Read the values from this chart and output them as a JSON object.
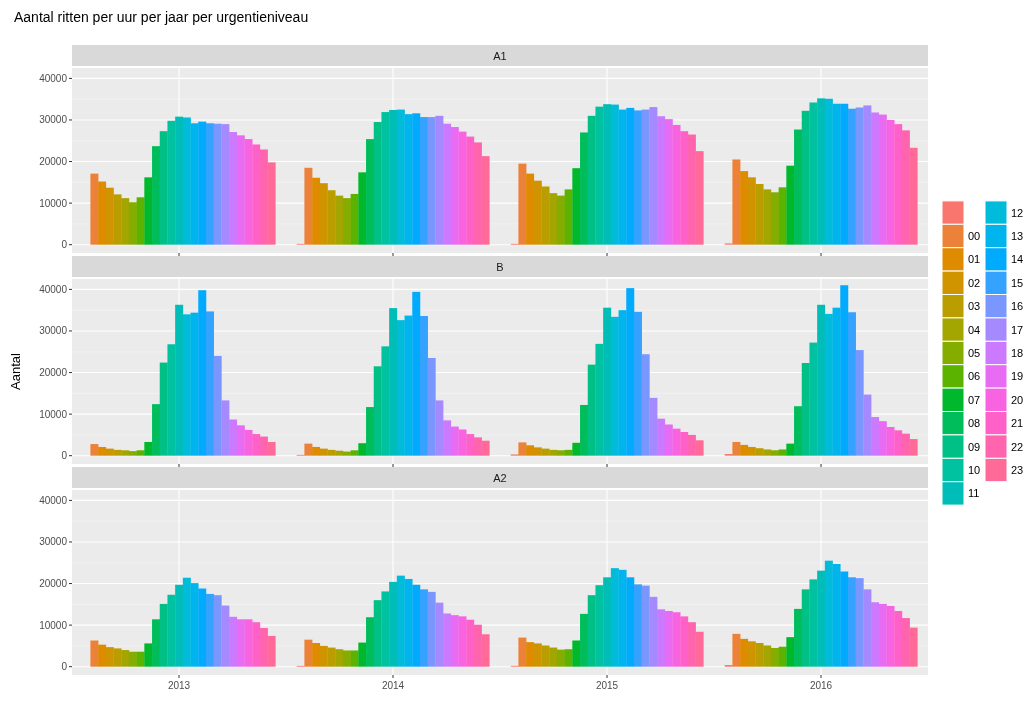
{
  "chart_data": [
    {
      "type": "bar",
      "title": "Aantal ritten per uur per jaar per urgentieniveau",
      "subtitle": "A1",
      "categories": [
        "2013",
        "2014",
        "2015",
        "2016"
      ],
      "ylim": [
        -2000,
        42500
      ],
      "yticks": [
        0,
        10000,
        20000,
        30000,
        40000
      ],
      "grid": true,
      "legend": "right",
      "tick_labels": "y",
      "series": [
        {
          "color": "#F8766D",
          "values": [
            null,
            200,
            200,
            300
          ]
        },
        {
          "name": "00",
          "color": "#EC8239",
          "values": [
            17100,
            18500,
            19500,
            20500
          ]
        },
        {
          "name": "01",
          "color": "#DF8B00",
          "values": [
            15200,
            16100,
            17100,
            17700
          ]
        },
        {
          "name": "02",
          "color": "#CF9400",
          "values": [
            13700,
            14800,
            15400,
            16200
          ]
        },
        {
          "name": "03",
          "color": "#BA9E00",
          "values": [
            12100,
            13100,
            14000,
            14600
          ]
        },
        {
          "name": "04",
          "color": "#A3A500",
          "values": [
            11200,
            11800,
            12400,
            13300
          ]
        },
        {
          "name": "05",
          "color": "#85AD00",
          "values": [
            10200,
            11200,
            11800,
            12600
          ]
        },
        {
          "name": "06",
          "color": "#5BB300",
          "values": [
            11400,
            12200,
            13300,
            13800
          ]
        },
        {
          "name": "07",
          "color": "#00B82B",
          "values": [
            16200,
            17400,
            18400,
            19000
          ]
        },
        {
          "name": "08",
          "color": "#00BD5C",
          "values": [
            23700,
            25400,
            27000,
            27700
          ]
        },
        {
          "name": "09",
          "color": "#00C085",
          "values": [
            27300,
            29500,
            31000,
            32200
          ]
        },
        {
          "name": "10",
          "color": "#00C1A0",
          "values": [
            29800,
            31900,
            33200,
            34200
          ]
        },
        {
          "name": "11",
          "color": "#00BEB7",
          "values": [
            30800,
            32400,
            33800,
            35200
          ]
        },
        {
          "name": "12",
          "color": "#00BBDA",
          "values": [
            30600,
            32500,
            33700,
            35100
          ]
        },
        {
          "name": "13",
          "color": "#00B5EE",
          "values": [
            29200,
            31400,
            32500,
            33900
          ]
        },
        {
          "name": "14",
          "color": "#00ABFD",
          "values": [
            29600,
            31600,
            32900,
            33900
          ]
        },
        {
          "name": "15",
          "color": "#35A2FF",
          "values": [
            29200,
            30700,
            32300,
            32700
          ]
        },
        {
          "name": "16",
          "color": "#7997FF",
          "values": [
            29100,
            30700,
            32500,
            33000
          ]
        },
        {
          "name": "17",
          "color": "#A58AFF",
          "values": [
            29000,
            31000,
            33100,
            33500
          ]
        },
        {
          "name": "18",
          "color": "#CB7AFF",
          "values": [
            27100,
            29100,
            30900,
            31800
          ]
        },
        {
          "name": "19",
          "color": "#E76BF3",
          "values": [
            26300,
            28300,
            30200,
            31300
          ]
        },
        {
          "name": "20",
          "color": "#F763E0",
          "values": [
            25400,
            27200,
            28800,
            30000
          ]
        },
        {
          "name": "21",
          "color": "#FF61C9",
          "values": [
            24100,
            26000,
            27300,
            29000
          ]
        },
        {
          "name": "22",
          "color": "#FF65AF",
          "values": [
            22900,
            24600,
            26500,
            27500
          ]
        },
        {
          "name": "23",
          "color": "#FF6A98",
          "values": [
            19800,
            21300,
            22500,
            23300
          ]
        }
      ]
    },
    {
      "type": "bar",
      "subtitle": "B",
      "ylabel": "Aantal",
      "categories": [
        "2013",
        "2014",
        "2015",
        "2016"
      ],
      "ylim": [
        -2000,
        42500
      ],
      "yticks": [
        0,
        10000,
        20000,
        30000,
        40000
      ],
      "grid": true,
      "tick_labels": "y",
      "series": [
        {
          "color": "#F8766D",
          "values": [
            null,
            200,
            300,
            400
          ]
        },
        {
          "color": "#EC8239",
          "values": [
            2800,
            2900,
            3200,
            3300
          ]
        },
        {
          "color": "#DF8B00",
          "values": [
            2100,
            2100,
            2500,
            2600
          ]
        },
        {
          "color": "#CF9400",
          "values": [
            1700,
            1700,
            2000,
            2100
          ]
        },
        {
          "color": "#BA9E00",
          "values": [
            1400,
            1400,
            1700,
            1800
          ]
        },
        {
          "color": "#A3A500",
          "values": [
            1300,
            1200,
            1400,
            1500
          ]
        },
        {
          "color": "#85AD00",
          "values": [
            1100,
            1000,
            1300,
            1300
          ]
        },
        {
          "color": "#5BB300",
          "values": [
            1300,
            1300,
            1400,
            1500
          ]
        },
        {
          "color": "#00B82B",
          "values": [
            3300,
            3000,
            3100,
            2900
          ]
        },
        {
          "color": "#00BD5C",
          "values": [
            12400,
            11700,
            12200,
            11900
          ]
        },
        {
          "color": "#00C085",
          "values": [
            22400,
            21500,
            21900,
            22300
          ]
        },
        {
          "color": "#00C1A0",
          "values": [
            26800,
            26300,
            26900,
            27200
          ]
        },
        {
          "color": "#00BEB7",
          "values": [
            36300,
            35500,
            35600,
            36300
          ]
        },
        {
          "color": "#00BBDA",
          "values": [
            34000,
            32600,
            33400,
            34100
          ]
        },
        {
          "color": "#00B5EE",
          "values": [
            34400,
            33700,
            35000,
            35600
          ]
        },
        {
          "color": "#00ABFD",
          "values": [
            39800,
            39400,
            40300,
            41000
          ]
        },
        {
          "color": "#35A2FF",
          "values": [
            34700,
            33600,
            34600,
            34500
          ]
        },
        {
          "color": "#7997FF",
          "values": [
            24000,
            23500,
            24400,
            25400
          ]
        },
        {
          "color": "#A58AFF",
          "values": [
            13300,
            13300,
            13900,
            14700
          ]
        },
        {
          "color": "#CB7AFF",
          "values": [
            8700,
            8500,
            8900,
            9300
          ]
        },
        {
          "color": "#E76BF3",
          "values": [
            7300,
            7000,
            7500,
            8300
          ]
        },
        {
          "color": "#F763E0",
          "values": [
            6200,
            6300,
            6500,
            6900
          ]
        },
        {
          "color": "#FF61C9",
          "values": [
            5200,
            5200,
            5700,
            6100
          ]
        },
        {
          "color": "#FF65AF",
          "values": [
            4600,
            4400,
            5000,
            5300
          ]
        },
        {
          "color": "#FF6A98",
          "values": [
            3300,
            3600,
            3700,
            4000
          ]
        }
      ]
    },
    {
      "type": "bar",
      "subtitle": "A2",
      "categories": [
        "2013",
        "2014",
        "2015",
        "2016"
      ],
      "ylim": [
        -2000,
        42500
      ],
      "yticks": [
        0,
        10000,
        20000,
        30000,
        40000
      ],
      "grid": true,
      "series": [
        {
          "color": "#F8766D",
          "values": [
            null,
            200,
            200,
            400
          ]
        },
        {
          "color": "#EC8239",
          "values": [
            6300,
            6500,
            7000,
            7900
          ]
        },
        {
          "color": "#DF8B00",
          "values": [
            5300,
            5700,
            5900,
            6700
          ]
        },
        {
          "color": "#CF9400",
          "values": [
            4700,
            5000,
            5600,
            6100
          ]
        },
        {
          "color": "#BA9E00",
          "values": [
            4400,
            4600,
            5100,
            5700
          ]
        },
        {
          "color": "#A3A500",
          "values": [
            4000,
            4200,
            4600,
            5100
          ]
        },
        {
          "color": "#85AD00",
          "values": [
            3600,
            3900,
            4100,
            4500
          ]
        },
        {
          "color": "#5BB300",
          "values": [
            3600,
            3900,
            4200,
            4800
          ]
        },
        {
          "color": "#00B82B",
          "values": [
            5600,
            5800,
            6300,
            7100
          ]
        },
        {
          "color": "#00BD5C",
          "values": [
            11400,
            11900,
            12700,
            13900
          ]
        },
        {
          "color": "#00C085",
          "values": [
            15100,
            16000,
            17200,
            18600
          ]
        },
        {
          "color": "#00C1A0",
          "values": [
            17300,
            18100,
            19600,
            21000
          ]
        },
        {
          "color": "#00BEB7",
          "values": [
            19700,
            20400,
            21500,
            23100
          ]
        },
        {
          "color": "#00BBDA",
          "values": [
            21400,
            21900,
            23700,
            25500
          ]
        },
        {
          "color": "#00B5EE",
          "values": [
            20100,
            21100,
            23300,
            24700
          ]
        },
        {
          "color": "#00ABFD",
          "values": [
            18800,
            19700,
            21500,
            22900
          ]
        },
        {
          "color": "#35A2FF",
          "values": [
            17500,
            18600,
            19800,
            21500
          ]
        },
        {
          "color": "#7997FF",
          "values": [
            17200,
            18000,
            19500,
            21300
          ]
        },
        {
          "color": "#A58AFF",
          "values": [
            14700,
            15400,
            16800,
            18600
          ]
        },
        {
          "color": "#CB7AFF",
          "values": [
            12000,
            12800,
            13800,
            15500
          ]
        },
        {
          "color": "#E76BF3",
          "values": [
            11400,
            12400,
            13400,
            15100
          ]
        },
        {
          "color": "#F763E0",
          "values": [
            11400,
            12100,
            13100,
            14600
          ]
        },
        {
          "color": "#FF61C9",
          "values": [
            10700,
            11300,
            12100,
            13400
          ]
        },
        {
          "color": "#FF65AF",
          "values": [
            9300,
            10100,
            10700,
            11700
          ]
        },
        {
          "color": "#FF6A98",
          "values": [
            7400,
            7800,
            8400,
            9400
          ]
        }
      ]
    }
  ]
}
